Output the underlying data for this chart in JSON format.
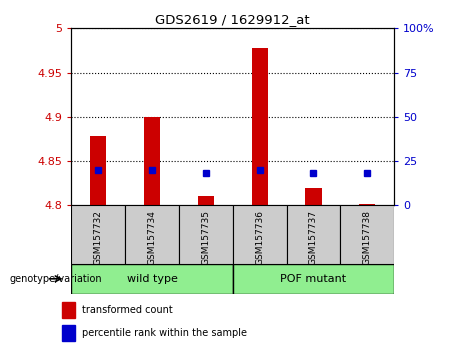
{
  "title": "GDS2619 / 1629912_at",
  "samples": [
    "GSM157732",
    "GSM157734",
    "GSM157735",
    "GSM157736",
    "GSM157737",
    "GSM157738"
  ],
  "transformed_counts": [
    4.878,
    4.9,
    4.81,
    4.978,
    4.82,
    4.802
  ],
  "percentile_ranks": [
    20,
    20,
    18,
    20,
    18,
    18
  ],
  "baseline": 4.8,
  "ylim_left": [
    4.8,
    5.0
  ],
  "ylim_right": [
    0,
    100
  ],
  "yticks_left": [
    4.8,
    4.85,
    4.9,
    4.95,
    5.0
  ],
  "yticks_right": [
    0,
    25,
    50,
    75,
    100
  ],
  "ytick_labels_left": [
    "4.8",
    "4.85",
    "4.9",
    "4.95",
    "5"
  ],
  "ytick_labels_right": [
    "0",
    "25",
    "50",
    "75",
    "100%"
  ],
  "bar_color": "#cc0000",
  "marker_color": "#0000cc",
  "bg_color": "#cccccc",
  "plot_bg": "#ffffff",
  "group_fill_color": "#90ee90",
  "group_border_color": "#000000",
  "ylabel_left_color": "#cc0000",
  "ylabel_right_color": "#0000cc",
  "legend_items": [
    "transformed count",
    "percentile rank within the sample"
  ],
  "group_label": "genotype/variation",
  "wild_type_label": "wild type",
  "pof_mutant_label": "POF mutant",
  "bar_width": 0.3
}
